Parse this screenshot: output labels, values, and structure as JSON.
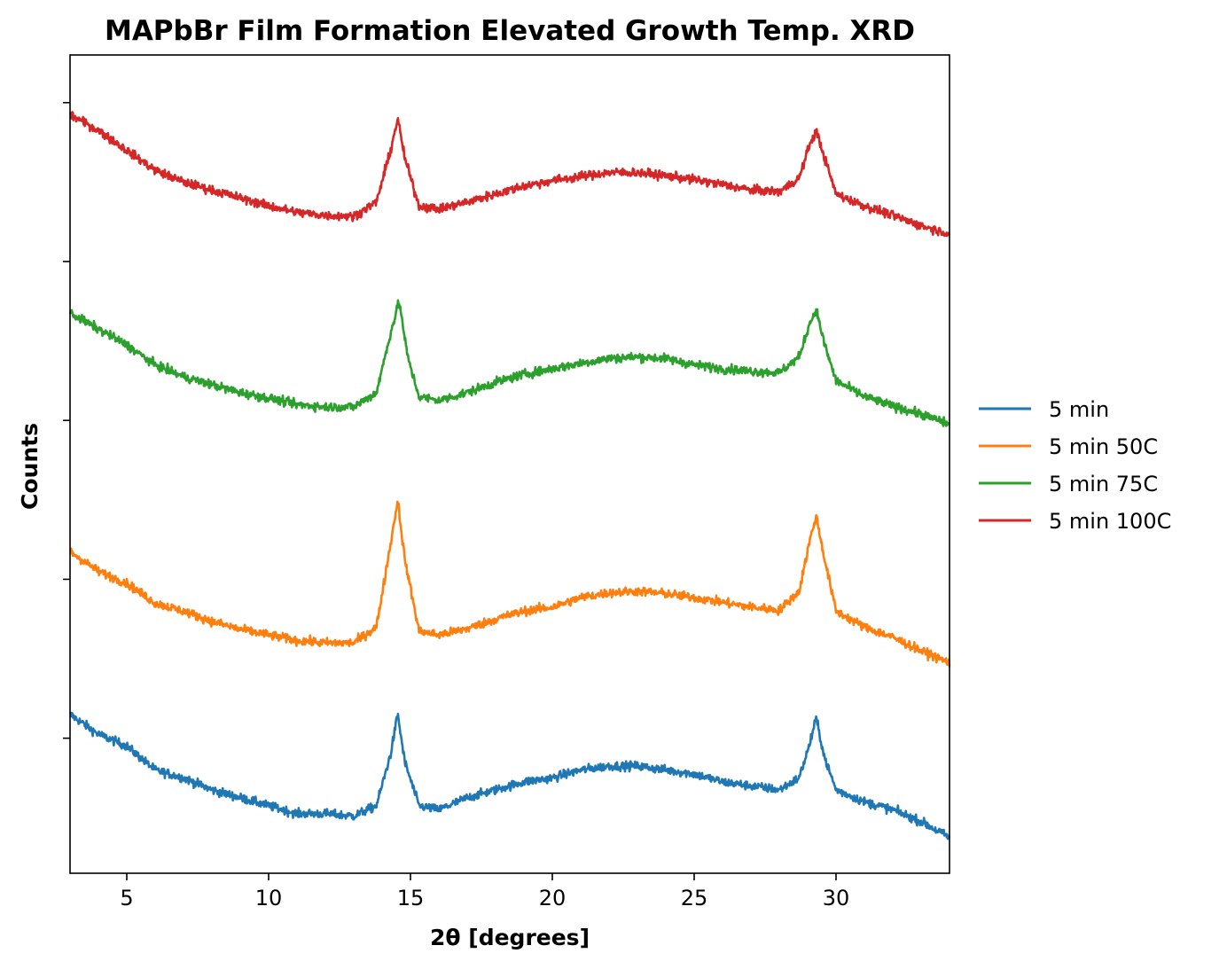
{
  "chart_data": {
    "type": "line",
    "title": "MAPbBr Film Formation Elevated Growth Temp. XRD",
    "xlabel": "2θ [degrees]",
    "ylabel": "Counts",
    "xlim": [
      3,
      34
    ],
    "ylim": [
      0,
      10.3
    ],
    "x_ticks": [
      5,
      10,
      15,
      20,
      25,
      30
    ],
    "y_ticks": [
      1.7,
      3.7,
      5.7,
      7.7,
      9.7
    ],
    "y_tick_labels_shown": false,
    "grid": false,
    "legend_position": "right",
    "series": [
      {
        "name": "5 min",
        "color": "#1f77b4",
        "offset": 0.0,
        "points": [
          [
            3,
            2.0
          ],
          [
            4,
            1.75
          ],
          [
            5,
            1.6
          ],
          [
            6,
            1.3
          ],
          [
            7,
            1.2
          ],
          [
            8,
            1.05
          ],
          [
            9,
            0.95
          ],
          [
            10,
            0.85
          ],
          [
            11,
            0.75
          ],
          [
            12,
            0.75
          ],
          [
            13,
            0.72
          ],
          [
            13.8,
            0.85
          ],
          [
            14.3,
            1.5
          ],
          [
            14.55,
            2.0
          ],
          [
            14.8,
            1.4
          ],
          [
            15.3,
            0.85
          ],
          [
            16,
            0.8
          ],
          [
            17,
            0.95
          ],
          [
            18,
            1.05
          ],
          [
            19,
            1.15
          ],
          [
            20,
            1.2
          ],
          [
            21,
            1.3
          ],
          [
            22,
            1.35
          ],
          [
            23,
            1.35
          ],
          [
            24,
            1.3
          ],
          [
            25,
            1.25
          ],
          [
            26,
            1.15
          ],
          [
            27,
            1.1
          ],
          [
            28,
            1.05
          ],
          [
            28.7,
            1.2
          ],
          [
            29.05,
            1.6
          ],
          [
            29.3,
            1.95
          ],
          [
            29.6,
            1.45
          ],
          [
            30,
            1.05
          ],
          [
            31,
            0.9
          ],
          [
            32,
            0.8
          ],
          [
            33,
            0.65
          ],
          [
            34,
            0.45
          ]
        ]
      },
      {
        "name": "5 min 50C",
        "color": "#ff7f0e",
        "offset": 2.75,
        "points": [
          [
            3,
            1.3
          ],
          [
            4,
            1.05
          ],
          [
            5,
            0.9
          ],
          [
            6,
            0.65
          ],
          [
            7,
            0.55
          ],
          [
            8,
            0.42
          ],
          [
            9,
            0.32
          ],
          [
            10,
            0.25
          ],
          [
            11,
            0.18
          ],
          [
            12,
            0.15
          ],
          [
            13,
            0.15
          ],
          [
            13.8,
            0.35
          ],
          [
            14.3,
            1.4
          ],
          [
            14.55,
            1.95
          ],
          [
            14.8,
            1.2
          ],
          [
            15.3,
            0.3
          ],
          [
            16,
            0.25
          ],
          [
            17,
            0.33
          ],
          [
            18,
            0.45
          ],
          [
            19,
            0.55
          ],
          [
            20,
            0.6
          ],
          [
            21,
            0.72
          ],
          [
            22,
            0.78
          ],
          [
            23,
            0.8
          ],
          [
            24,
            0.77
          ],
          [
            25,
            0.72
          ],
          [
            26,
            0.66
          ],
          [
            27,
            0.6
          ],
          [
            28,
            0.56
          ],
          [
            28.7,
            0.8
          ],
          [
            29.05,
            1.4
          ],
          [
            29.3,
            1.75
          ],
          [
            29.6,
            1.2
          ],
          [
            30,
            0.55
          ],
          [
            31,
            0.35
          ],
          [
            32,
            0.22
          ],
          [
            33,
            0.05
          ],
          [
            34,
            -0.1
          ]
        ]
      },
      {
        "name": "5 min 75C",
        "color": "#2ca02c",
        "offset": 5.6,
        "points": [
          [
            3,
            1.45
          ],
          [
            4,
            1.25
          ],
          [
            5,
            1.05
          ],
          [
            6,
            0.8
          ],
          [
            7,
            0.65
          ],
          [
            8,
            0.55
          ],
          [
            9,
            0.45
          ],
          [
            10,
            0.38
          ],
          [
            11,
            0.3
          ],
          [
            12,
            0.27
          ],
          [
            13,
            0.27
          ],
          [
            13.8,
            0.45
          ],
          [
            14.3,
            1.2
          ],
          [
            14.6,
            1.6
          ],
          [
            14.9,
            0.9
          ],
          [
            15.3,
            0.4
          ],
          [
            16,
            0.35
          ],
          [
            17,
            0.45
          ],
          [
            18,
            0.58
          ],
          [
            19,
            0.68
          ],
          [
            20,
            0.75
          ],
          [
            21,
            0.82
          ],
          [
            22,
            0.88
          ],
          [
            23,
            0.9
          ],
          [
            24,
            0.88
          ],
          [
            25,
            0.8
          ],
          [
            26,
            0.75
          ],
          [
            27,
            0.72
          ],
          [
            28,
            0.7
          ],
          [
            28.7,
            0.9
          ],
          [
            29.05,
            1.3
          ],
          [
            29.3,
            1.5
          ],
          [
            29.6,
            1.05
          ],
          [
            30,
            0.6
          ],
          [
            31,
            0.4
          ],
          [
            32,
            0.28
          ],
          [
            33,
            0.18
          ],
          [
            34,
            0.05
          ]
        ]
      },
      {
        "name": "5 min 100C",
        "color": "#d62728",
        "offset": 8.1,
        "points": [
          [
            3,
            1.45
          ],
          [
            4,
            1.25
          ],
          [
            5,
            1.0
          ],
          [
            6,
            0.75
          ],
          [
            7,
            0.6
          ],
          [
            8,
            0.5
          ],
          [
            9,
            0.4
          ],
          [
            10,
            0.3
          ],
          [
            11,
            0.22
          ],
          [
            12,
            0.18
          ],
          [
            13,
            0.17
          ],
          [
            13.8,
            0.35
          ],
          [
            14.3,
            1.0
          ],
          [
            14.55,
            1.4
          ],
          [
            14.8,
            0.9
          ],
          [
            15.3,
            0.3
          ],
          [
            16,
            0.26
          ],
          [
            17,
            0.35
          ],
          [
            18,
            0.45
          ],
          [
            19,
            0.55
          ],
          [
            20,
            0.62
          ],
          [
            21,
            0.67
          ],
          [
            22,
            0.72
          ],
          [
            23,
            0.72
          ],
          [
            24,
            0.68
          ],
          [
            25,
            0.63
          ],
          [
            26,
            0.57
          ],
          [
            27,
            0.5
          ],
          [
            28,
            0.48
          ],
          [
            28.7,
            0.65
          ],
          [
            29.05,
            1.05
          ],
          [
            29.3,
            1.25
          ],
          [
            29.6,
            0.9
          ],
          [
            30,
            0.45
          ],
          [
            31,
            0.3
          ],
          [
            32,
            0.18
          ],
          [
            33,
            0.05
          ],
          [
            34,
            -0.05
          ]
        ]
      }
    ]
  }
}
